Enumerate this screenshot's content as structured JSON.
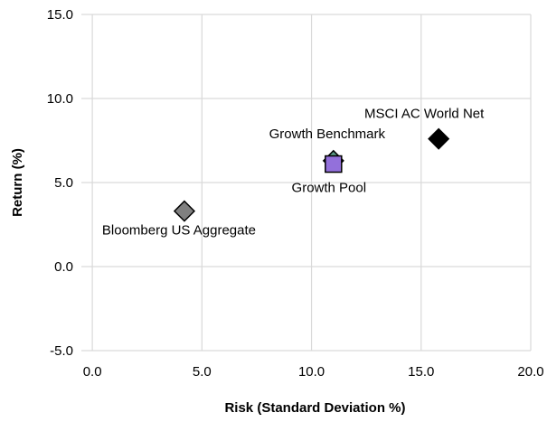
{
  "chart_data": {
    "type": "scatter",
    "title": "",
    "xlabel": "Risk (Standard Deviation %)",
    "ylabel": "Return (%)",
    "xlim": [
      -0.5,
      20.0
    ],
    "ylim": [
      -5.0,
      15.0
    ],
    "x_ticks": [
      0.0,
      5.0,
      10.0,
      15.0,
      20.0
    ],
    "y_ticks": [
      -5.0,
      0.0,
      5.0,
      10.0,
      15.0
    ],
    "x_tick_labels": [
      "0.0",
      "5.0",
      "10.0",
      "15.0",
      "20.0"
    ],
    "y_tick_labels": [
      "-5.0",
      "0.0",
      "5.0",
      "10.0",
      "15.0"
    ],
    "grid": true,
    "points": [
      {
        "name": "Bloomberg US Aggregate",
        "x": 4.2,
        "y": 3.3,
        "marker": "diamond",
        "color": "#808080",
        "label_position": "below"
      },
      {
        "name": "Growth Benchmark",
        "x": 11.0,
        "y": 6.3,
        "marker": "diamond",
        "color": "#5a9a84",
        "label_position": "above"
      },
      {
        "name": "Growth Pool",
        "x": 11.0,
        "y": 6.1,
        "marker": "square",
        "color": "#9370DB",
        "label_position": "below"
      },
      {
        "name": "MSCI AC World Net",
        "x": 15.8,
        "y": 7.6,
        "marker": "diamond",
        "color": "#000000",
        "label_position": "above"
      }
    ]
  }
}
